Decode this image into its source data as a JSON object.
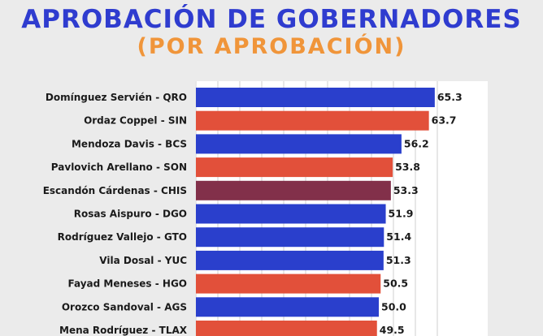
{
  "header": {
    "title": "APROBACIÓN DE GOBERNADORES",
    "subtitle": "(POR APROBACIÓN)"
  },
  "colors": {
    "blue": "#2a3fcc",
    "red": "#e2503a",
    "maroon": "#82304a",
    "title_blue": "#2f3ccf",
    "subtitle_orange": "#f0953a"
  },
  "chart_data": {
    "type": "bar",
    "orientation": "horizontal",
    "categories": [
      "Domínguez Servién - QRO",
      "Ordaz Coppel - SIN",
      "Mendoza Davis - BCS",
      "Pavlovich Arellano - SON",
      "Escandón Cárdenas - CHIS",
      "Rosas Aispuro - DGO",
      "Rodríguez Vallejo - GTO",
      "Vila Dosal - YUC",
      "Fayad Meneses - HGO",
      "Orozco Sandoval - AGS",
      "Mena Rodríguez - TLAX"
    ],
    "values": [
      65.3,
      63.7,
      56.2,
      53.8,
      53.3,
      51.9,
      51.4,
      51.3,
      50.5,
      50.0,
      49.5
    ],
    "value_labels": [
      "65.3",
      "63.7",
      "56.2",
      "53.8",
      "53.3",
      "51.9",
      "51.4",
      "51.3",
      "50.5",
      "50.0",
      "49.5"
    ],
    "bar_colors": [
      "blue",
      "red",
      "blue",
      "red",
      "maroon",
      "blue",
      "blue",
      "blue",
      "red",
      "blue",
      "red"
    ],
    "xlim": [
      0,
      70
    ],
    "grid": true,
    "legend": "none"
  }
}
